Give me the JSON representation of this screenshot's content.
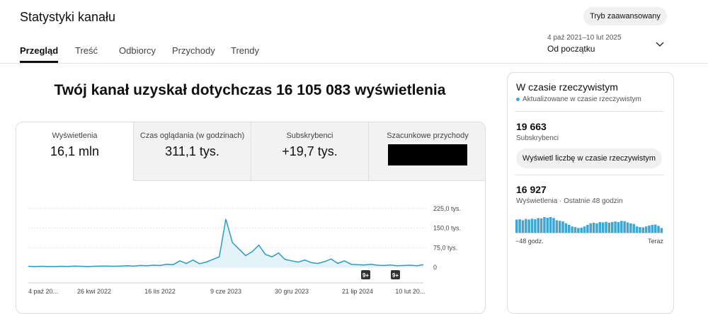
{
  "header": {
    "title": "Statystyki kanału",
    "tabs": [
      "Przegląd",
      "Treść",
      "Odbiorcy",
      "Przychody",
      "Trendy"
    ],
    "mode_button": "Tryb zaawansowany",
    "date_range": "4 paź 2021–10 lut 2025",
    "period": "Od początku"
  },
  "headline": "Twój kanał uzyskał dotychczas 16 105 083 wyświetlenia",
  "metrics": [
    {
      "label": "Wyświetlenia",
      "value": "16,1 mln"
    },
    {
      "label": "Czas oglądania (w godzinach)",
      "value": "311,1 tys."
    },
    {
      "label": "Subskrybenci",
      "value": "+19,7 tys."
    },
    {
      "label": "Szacunkowe przychody"
    }
  ],
  "realtime": {
    "title": "W czasie rzeczywistym",
    "status": "Aktualizowane w czasie rzeczywistym",
    "subscribers": "19 663",
    "subscribers_label": "Subskrybenci",
    "button": "Wyświetl liczbę w czasie rzeczywistym",
    "views": "16 927",
    "views_label": "Wyświetlenia · Ostatnie 48 godzin"
  },
  "chart_data": [
    {
      "type": "line",
      "color": "#2e9ac4",
      "categories": [
        "4 paź 20...",
        null,
        null,
        null,
        null,
        null,
        null,
        null,
        null,
        null,
        "26 kwi 2022",
        null,
        null,
        null,
        null,
        null,
        null,
        null,
        null,
        null,
        "16 lis 2022",
        null,
        null,
        null,
        null,
        null,
        null,
        null,
        null,
        null,
        "9 cze 2023",
        null,
        null,
        null,
        null,
        null,
        null,
        null,
        null,
        null,
        "30 gru 2023",
        null,
        null,
        null,
        null,
        null,
        null,
        null,
        null,
        null,
        "21 lip 2024",
        null,
        null,
        null,
        null,
        null,
        null,
        null,
        "10 lut 20...",
        null,
        null
      ],
      "values": [
        4000,
        3000,
        4000,
        3500,
        3000,
        4000,
        3500,
        5000,
        4000,
        3000,
        4000,
        4500,
        5000,
        4000,
        5000,
        6000,
        5000,
        7000,
        6000,
        8000,
        7000,
        12000,
        10000,
        25000,
        15000,
        28000,
        14000,
        20000,
        30000,
        40000,
        185000,
        95000,
        70000,
        45000,
        60000,
        85000,
        50000,
        40000,
        55000,
        30000,
        25000,
        20000,
        28000,
        18000,
        15000,
        22000,
        32000,
        15000,
        25000,
        12000,
        10000,
        9000,
        12000,
        8000,
        7000,
        9000,
        6000,
        7000,
        8000,
        6000,
        10000
      ],
      "ylim": [
        0,
        225000
      ],
      "yticks": [
        {
          "value": 0,
          "label": "0"
        },
        {
          "value": 75000,
          "label": "75,0 tys."
        },
        {
          "value": 150000,
          "label": "150,0 tys."
        },
        {
          "value": 225000,
          "label": "225,0 tys."
        }
      ],
      "grid": true,
      "annotations": [
        "9+",
        "9+"
      ]
    },
    {
      "type": "bar",
      "color": "#3ea6d0",
      "categories": [
        "−48 godz.",
        null,
        null,
        null,
        null,
        null,
        null,
        null,
        null,
        null,
        null,
        null,
        null,
        null,
        null,
        null,
        null,
        null,
        null,
        null,
        null,
        null,
        null,
        null,
        null,
        null,
        null,
        null,
        null,
        null,
        null,
        null,
        null,
        null,
        null,
        null,
        null,
        null,
        null,
        null,
        null,
        null,
        null,
        null,
        null,
        null,
        null,
        "Teraz"
      ],
      "values": [
        420,
        430,
        400,
        440,
        420,
        450,
        430,
        470,
        460,
        500,
        480,
        500,
        470,
        400,
        380,
        360,
        300,
        250,
        200,
        180,
        150,
        160,
        200,
        250,
        300,
        320,
        300,
        340,
        330,
        350,
        320,
        340,
        360,
        340,
        380,
        370,
        330,
        300,
        280,
        200,
        180,
        170,
        200,
        230,
        250,
        260,
        220,
        150
      ]
    }
  ]
}
